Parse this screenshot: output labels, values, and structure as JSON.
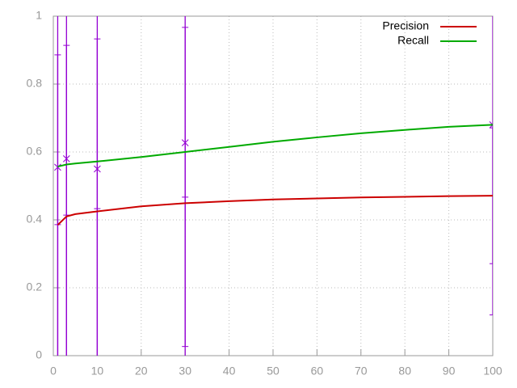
{
  "chart_data": {
    "type": "line",
    "x": [
      1,
      3,
      5,
      10,
      20,
      30,
      40,
      50,
      60,
      70,
      80,
      90,
      100
    ],
    "series": [
      {
        "name": "Precision",
        "color": "#cc0000",
        "values": [
          0.385,
          0.41,
          0.417,
          0.425,
          0.44,
          0.449,
          0.455,
          0.46,
          0.463,
          0.466,
          0.468,
          0.47,
          0.471
        ]
      },
      {
        "name": "Recall",
        "color": "#00aa00",
        "values": [
          0.557,
          0.563,
          0.566,
          0.572,
          0.585,
          0.6,
          0.615,
          0.63,
          0.643,
          0.655,
          0.665,
          0.674,
          0.68
        ]
      }
    ],
    "points": [
      {
        "color": "#9400d3",
        "marker": "plus",
        "x": [
          1,
          3,
          10,
          30,
          100
        ],
        "values": [
          0.386,
          0.414,
          0.433,
          0.467,
          0.471
        ],
        "errors": [
          0.5,
          0.5,
          0.5,
          0.5,
          0.2
        ]
      },
      {
        "color": "#9400d3",
        "marker": "cross",
        "x": [
          1,
          3,
          10,
          30,
          100
        ],
        "values": [
          0.555,
          0.58,
          0.55,
          0.627,
          0.68
        ],
        "errors": [
          0.6,
          0.6,
          0.6,
          0.6,
          0.56
        ]
      }
    ],
    "xlim": [
      0,
      100
    ],
    "ylim": [
      0,
      1
    ],
    "xticks": [
      0,
      10,
      20,
      30,
      40,
      50,
      60,
      70,
      80,
      90,
      100
    ],
    "yticks": [
      0,
      0.2,
      0.4,
      0.6,
      0.8,
      1
    ],
    "grid": true,
    "legend": "top-right"
  }
}
